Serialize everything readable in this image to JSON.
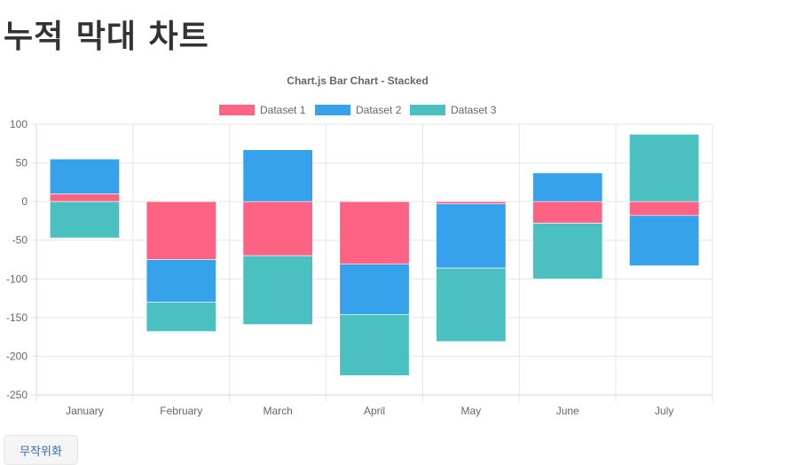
{
  "page": {
    "title": "누적 막대 차트"
  },
  "controls": {
    "randomize_label": "무작위화"
  },
  "chart_data": {
    "type": "bar",
    "stacked": true,
    "title": "Chart.js Bar Chart - Stacked",
    "categories": [
      "January",
      "February",
      "March",
      "April",
      "May",
      "June",
      "July"
    ],
    "series": [
      {
        "name": "Dataset 1",
        "color": "#ff6384",
        "values": [
          10,
          -75,
          -70,
          -81,
          -3,
          -28,
          -18
        ]
      },
      {
        "name": "Dataset 2",
        "color": "#36a2eb",
        "values": [
          45,
          -55,
          67,
          -65,
          -83,
          37,
          -65
        ]
      },
      {
        "name": "Dataset 3",
        "color": "#4bc0c0",
        "values": [
          -47,
          -38,
          -89,
          -79,
          -95,
          -72,
          87
        ]
      }
    ],
    "ylim": [
      -250,
      100
    ],
    "yticks": [
      100,
      50,
      0,
      -50,
      -100,
      -150,
      -200,
      -250
    ],
    "legend_position": "top",
    "grid": true
  }
}
